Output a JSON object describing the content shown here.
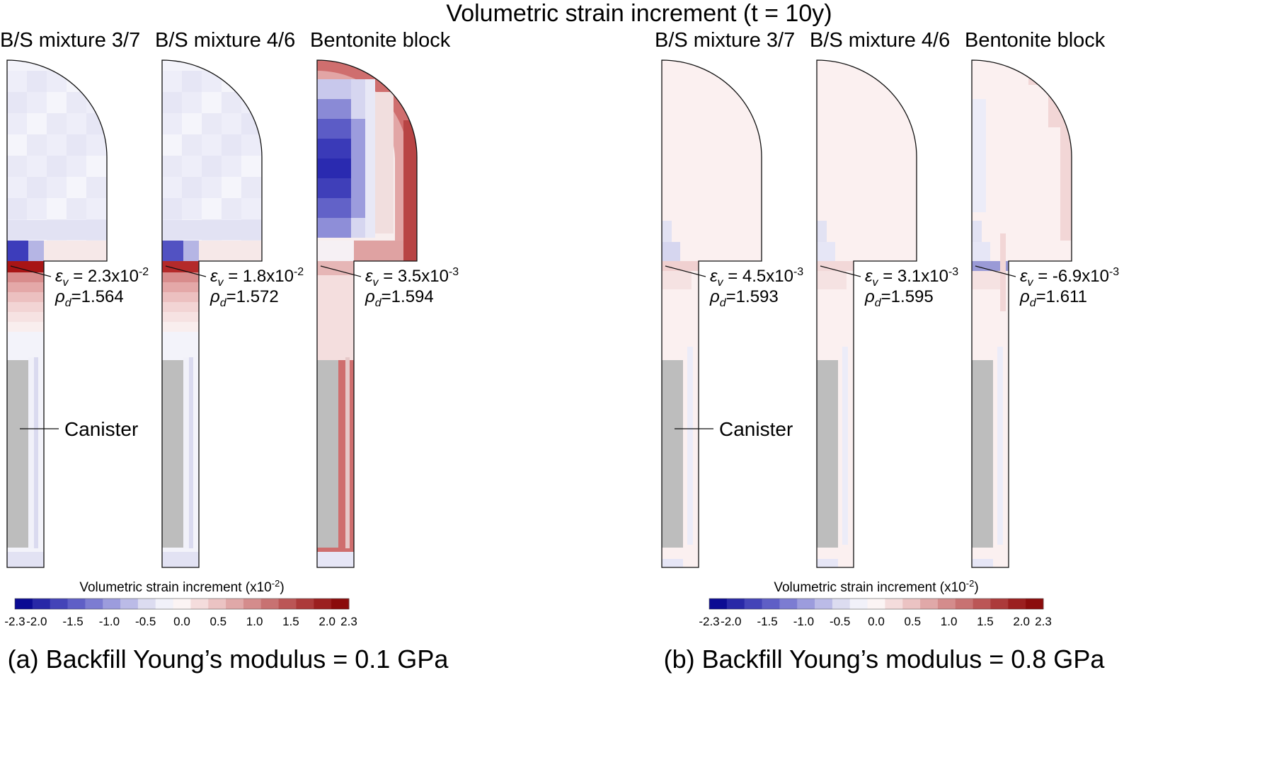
{
  "title": "Volumetric strain increment (t = 10y)",
  "colors": {
    "outline": "#111111",
    "canister": "#bdbdbd",
    "leader": "#111111"
  },
  "colorbar": {
    "title": "Volumetric strain increment (x10",
    "title_exp": "-2",
    "title_end": ")",
    "ticks": [
      "-2.3",
      "-2.0",
      "-1.5",
      "-1.0",
      "-0.5",
      "0.0",
      "0.5",
      "1.0",
      "1.5",
      "2.0",
      "2.3"
    ],
    "swatches": [
      "#0b0b93",
      "#2828a7",
      "#4444b8",
      "#5f5fc6",
      "#7c7cd2",
      "#9c9cdd",
      "#bbbbe7",
      "#dcdcf0",
      "#f1f1f9",
      "#fbf4f4",
      "#f4dcdc",
      "#ebc3c3",
      "#e0a8a8",
      "#d48c8c",
      "#c87272",
      "#bb5656",
      "#ac3a3a",
      "#9b1f1f",
      "#8b0c0c"
    ]
  },
  "groups": [
    {
      "id": "a",
      "caption": "(a) Backfill Young’s modulus = 0.1 GPa",
      "canister_label": "Canister",
      "panels": [
        {
          "title": "B/S mixture 3/7",
          "eps_symbol": "ε",
          "eps_sub": "v",
          "eps_text": " = 2.3x10",
          "eps_exp": "-2",
          "rho_symbol": "ρ",
          "rho_sub": "d",
          "rho_text": "=1.564",
          "pattern": "weak",
          "key_color": "#a81515",
          "low_color": "#3d3dbb"
        },
        {
          "title": "B/S mixture 4/6",
          "eps_symbol": "ε",
          "eps_sub": "v",
          "eps_text": " = 1.8x10",
          "eps_exp": "-2",
          "rho_symbol": "ρ",
          "rho_sub": "d",
          "rho_text": "=1.572",
          "pattern": "weak",
          "key_color": "#b42a2a",
          "low_color": "#5252c2"
        },
        {
          "title": "Bentonite block",
          "eps_symbol": "ε",
          "eps_sub": "v",
          "eps_text": " = 3.5x10",
          "eps_exp": "-3",
          "rho_symbol": "ρ",
          "rho_sub": "d",
          "rho_text": "=1.594",
          "pattern": "strong",
          "key_color": "#e6b6b6",
          "low_color": "#f1f1f9"
        }
      ]
    },
    {
      "id": "b",
      "caption": "(b) Backfill Young’s modulus = 0.8 GPa",
      "canister_label": "Canister",
      "panels": [
        {
          "title": "B/S mixture 3/7",
          "eps_symbol": "ε",
          "eps_sub": "v",
          "eps_text": " = 4.5x10",
          "eps_exp": "-3",
          "rho_symbol": "ρ",
          "rho_sub": "d",
          "rho_text": "=1.593",
          "pattern": "faint",
          "key_color": "#f0d0d0",
          "low_color": "#d6d6ef"
        },
        {
          "title": "B/S mixture 4/6",
          "eps_symbol": "ε",
          "eps_sub": "v",
          "eps_text": " = 3.1x10",
          "eps_exp": "-3",
          "rho_symbol": "ρ",
          "rho_sub": "d",
          "rho_text": "=1.595",
          "pattern": "faint",
          "key_color": "#f2d8d8",
          "low_color": "#e6e6f6"
        },
        {
          "title": "Bentonite block",
          "eps_symbol": "ε",
          "eps_sub": "v",
          "eps_text": " = -6.9x10",
          "eps_exp": "-3",
          "rho_symbol": "ρ",
          "rho_sub": "d",
          "rho_text": "=1.611",
          "pattern": "faint-rim",
          "key_color": "#9a9ad6",
          "low_color": "#e6e6f6"
        }
      ]
    }
  ]
}
